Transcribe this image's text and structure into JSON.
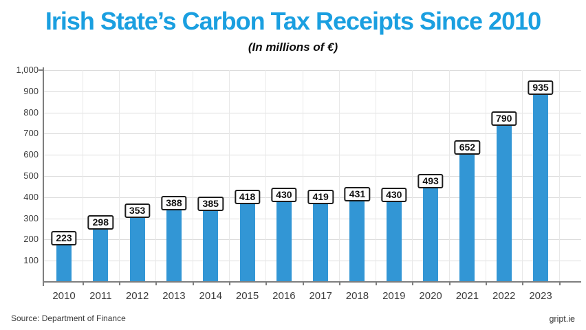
{
  "header": {
    "title": "Irish State’s Carbon Tax Receipts Since 2010",
    "subtitle": "(In millions of €)"
  },
  "footer": {
    "source": "Source: Department of Finance",
    "watermark": "gript.ie"
  },
  "colors": {
    "title": "#1a9fe0",
    "bar": "#3296d5",
    "axis": "#7e7e7e",
    "grid": "#dcdcdc"
  },
  "chart_data": {
    "type": "bar",
    "title": "Irish State’s Carbon Tax Receipts Since 2010",
    "subtitle": "(In millions of €)",
    "categories": [
      "2010",
      "2011",
      "2012",
      "2013",
      "2014",
      "2015",
      "2016",
      "2017",
      "2018",
      "2019",
      "2020",
      "2021",
      "2022",
      "2023"
    ],
    "values": [
      223,
      298,
      353,
      388,
      385,
      418,
      430,
      419,
      431,
      430,
      493,
      652,
      790,
      935
    ],
    "xlabel": "",
    "ylabel": "",
    "ylim": [
      0,
      1000
    ],
    "yticks": [
      100,
      200,
      300,
      400,
      500,
      600,
      700,
      800,
      900,
      1000
    ],
    "grid": true,
    "data_labels": true,
    "legend": "none",
    "bar_label_style": "boxed"
  }
}
